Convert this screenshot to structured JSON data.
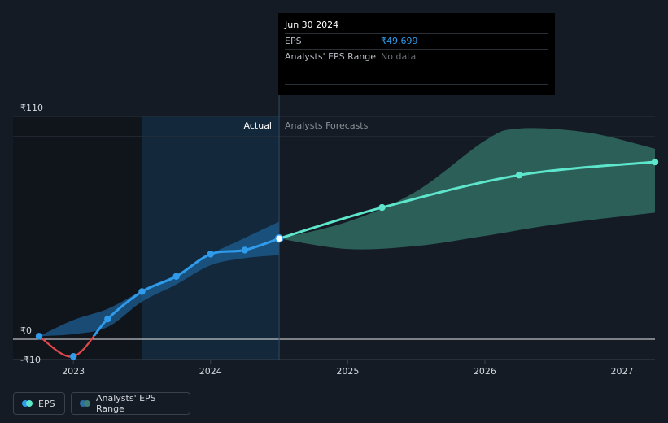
{
  "chart_data": {
    "type": "line",
    "y_axis": {
      "ticks": [
        {
          "value": 110,
          "label": "₹110"
        },
        {
          "value": 0,
          "label": "₹0"
        },
        {
          "value": -10,
          "label": "-₹10"
        }
      ],
      "range": [
        -10,
        110
      ]
    },
    "x_axis": {
      "ticks": [
        {
          "value": 2023,
          "label": "2023"
        },
        {
          "value": 2024,
          "label": "2024"
        },
        {
          "value": 2025,
          "label": "2025"
        },
        {
          "value": 2026,
          "label": "2026"
        },
        {
          "value": 2027,
          "label": "2027"
        }
      ],
      "range": [
        2022.56,
        2027.24
      ]
    },
    "regions": {
      "actual_label": "Actual",
      "forecast_label": "Analysts Forecasts",
      "split_x": 2024.5,
      "highlight_start_x": 2023.5
    },
    "series": [
      {
        "name": "EPS",
        "kind": "actual",
        "color": "#2f9bea",
        "negative_color": "#e0484b",
        "points": [
          [
            2022.75,
            1.5
          ],
          [
            2023.0,
            -8.5
          ],
          [
            2023.25,
            10.0
          ],
          [
            2023.5,
            23.5
          ],
          [
            2023.75,
            31.0
          ],
          [
            2024.0,
            42.0
          ],
          [
            2024.25,
            44.0
          ],
          [
            2024.5,
            49.7
          ]
        ]
      },
      {
        "name": "EPS",
        "kind": "forecast",
        "color": "#5ee6cc",
        "points": [
          [
            2024.5,
            49.7
          ],
          [
            2025.25,
            65.0
          ],
          [
            2026.25,
            81.0
          ],
          [
            2027.24,
            87.5
          ]
        ]
      }
    ],
    "range_bands": [
      {
        "name": "Analysts' EPS Range",
        "kind": "actual",
        "color": "#1e5d93",
        "upper": [
          [
            2022.75,
            1.5
          ],
          [
            2023.0,
            9.5
          ],
          [
            2023.25,
            15.0
          ],
          [
            2023.5,
            24.0
          ],
          [
            2023.75,
            32.0
          ],
          [
            2024.0,
            42.0
          ],
          [
            2024.25,
            50.0
          ],
          [
            2024.5,
            58.0
          ]
        ],
        "lower": [
          [
            2022.75,
            1.5
          ],
          [
            2023.0,
            2.5
          ],
          [
            2023.25,
            6.0
          ],
          [
            2023.5,
            18.5
          ],
          [
            2023.75,
            27.0
          ],
          [
            2024.0,
            36.5
          ],
          [
            2024.25,
            40.0
          ],
          [
            2024.5,
            41.5
          ]
        ]
      },
      {
        "name": "Analysts' EPS Range",
        "kind": "forecast",
        "color": "#2f6b62",
        "upper": [
          [
            2024.5,
            49.7
          ],
          [
            2025.0,
            58.0
          ],
          [
            2025.5,
            73.0
          ],
          [
            2026.0,
            98.0
          ],
          [
            2026.25,
            104.0
          ],
          [
            2026.75,
            102.0
          ],
          [
            2027.24,
            94.0
          ]
        ],
        "lower": [
          [
            2024.5,
            49.7
          ],
          [
            2025.0,
            44.5
          ],
          [
            2025.5,
            46.0
          ],
          [
            2026.0,
            51.0
          ],
          [
            2026.5,
            56.5
          ],
          [
            2027.24,
            62.5
          ]
        ]
      }
    ]
  },
  "tooltip": {
    "date": "Jun 30 2024",
    "rows": [
      {
        "label": "EPS",
        "value": "₹49.699"
      },
      {
        "label": "Analysts' EPS Range",
        "value": "No data"
      }
    ]
  },
  "legend": [
    {
      "label": "EPS",
      "colors": [
        "#2f9bea",
        "#5ee6cc"
      ]
    },
    {
      "label": "Analysts' EPS Range",
      "colors": [
        "#2a6fa8",
        "#3e7f76"
      ]
    }
  ]
}
